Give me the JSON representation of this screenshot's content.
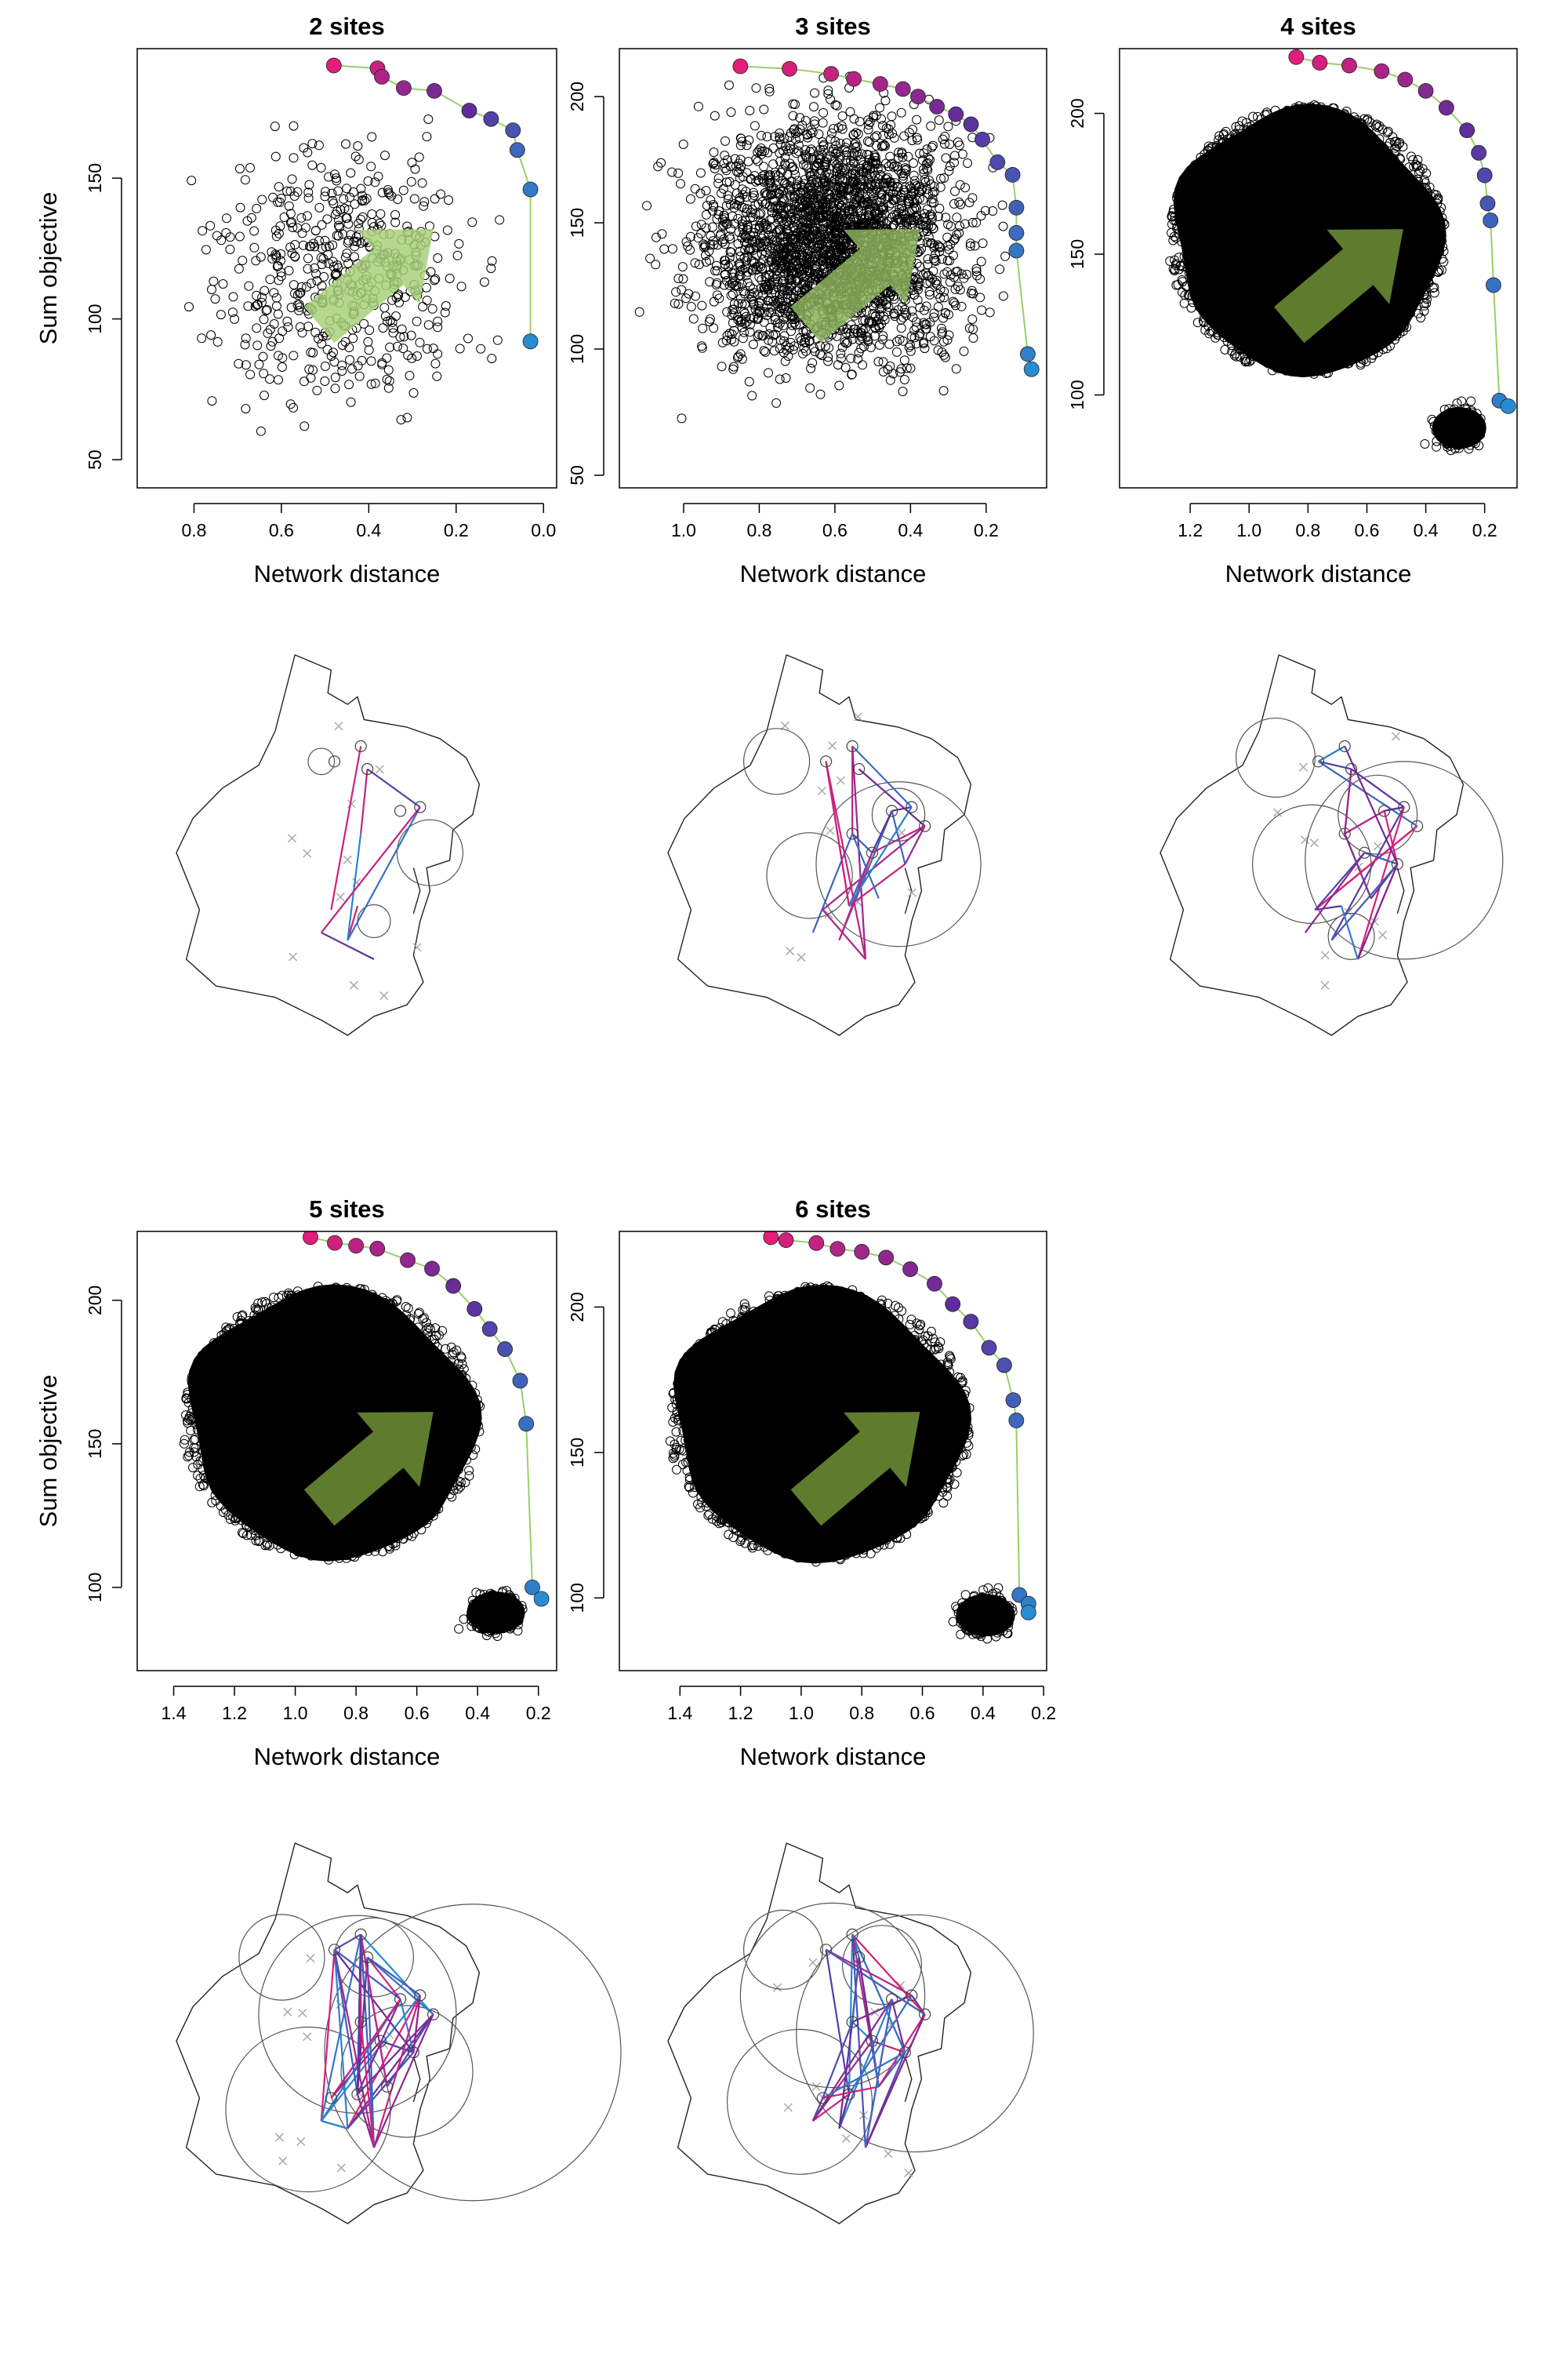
{
  "figure": {
    "row1_ylabel": "Sum objective",
    "row2_ylabel": "Sum objective"
  },
  "chart_data": [
    {
      "type": "scatter",
      "title": "2 sites",
      "xlabel": "Network distance",
      "ylabel": "Sum objective",
      "xlim": [
        0.93,
        -0.03
      ],
      "ylim": [
        40,
        196
      ],
      "xticks": [
        "0.8",
        "0.6",
        "0.4",
        "0.2",
        "0.0"
      ],
      "xtick_values": [
        0.8,
        0.6,
        0.4,
        0.2,
        0.0
      ],
      "yticks": [
        "50",
        "100",
        "150"
      ],
      "ytick_values": [
        50,
        100,
        150
      ],
      "cloud": {
        "x_range": [
          0.05,
          0.88
        ],
        "y_range": [
          40,
          190
        ],
        "density": "sparse"
      },
      "pareto_front": [
        [
          0.48,
          190
        ],
        [
          0.38,
          189
        ],
        [
          0.37,
          186
        ],
        [
          0.32,
          182
        ],
        [
          0.25,
          181
        ],
        [
          0.17,
          174
        ],
        [
          0.12,
          171
        ],
        [
          0.07,
          167
        ],
        [
          0.06,
          160
        ],
        [
          0.03,
          146
        ],
        [
          0.03,
          92
        ]
      ],
      "arrow": {
        "color": "#a9d07a",
        "dark": false
      }
    },
    {
      "type": "scatter",
      "title": "3 sites",
      "xlabel": "Network distance",
      "ylabel": "",
      "xlim": [
        1.17,
        0.04
      ],
      "ylim": [
        45,
        219
      ],
      "xticks": [
        "1.0",
        "0.8",
        "0.6",
        "0.4",
        "0.2"
      ],
      "xtick_values": [
        1.0,
        0.8,
        0.6,
        0.4,
        0.2
      ],
      "yticks": [
        "50",
        "100",
        "150",
        "200"
      ],
      "ytick_values": [
        50,
        100,
        150,
        200
      ],
      "cloud": {
        "x_range": [
          0.1,
          1.12
        ],
        "y_range": [
          50,
          213
        ],
        "density": "medium"
      },
      "pareto_front": [
        [
          0.85,
          212
        ],
        [
          0.72,
          211
        ],
        [
          0.61,
          209
        ],
        [
          0.55,
          207
        ],
        [
          0.48,
          205
        ],
        [
          0.42,
          203
        ],
        [
          0.38,
          200
        ],
        [
          0.33,
          196
        ],
        [
          0.28,
          193
        ],
        [
          0.24,
          189
        ],
        [
          0.21,
          183
        ],
        [
          0.17,
          174
        ],
        [
          0.13,
          169
        ],
        [
          0.12,
          156
        ],
        [
          0.12,
          146
        ],
        [
          0.12,
          139
        ],
        [
          0.09,
          98
        ],
        [
          0.08,
          92
        ]
      ],
      "arrow": {
        "color": "#8bb15a",
        "dark": false
      }
    },
    {
      "type": "scatter",
      "title": "4 sites",
      "xlabel": "Network distance",
      "ylabel": "",
      "xlim": [
        1.44,
        0.09
      ],
      "ylim": [
        67,
        223
      ],
      "xticks": [
        "1.2",
        "1.0",
        "0.8",
        "0.6",
        "0.4",
        "0.2"
      ],
      "xtick_values": [
        1.2,
        1.0,
        0.8,
        0.6,
        0.4,
        0.2
      ],
      "yticks": [
        "100",
        "150",
        "200"
      ],
      "ytick_values": [
        100,
        150,
        200
      ],
      "cloud": {
        "x_range": [
          0.2,
          1.35
        ],
        "y_range": [
          72,
          220
        ],
        "density": "dense"
      },
      "pareto_front": [
        [
          0.84,
          220
        ],
        [
          0.76,
          218
        ],
        [
          0.66,
          217
        ],
        [
          0.55,
          215
        ],
        [
          0.47,
          212
        ],
        [
          0.4,
          208
        ],
        [
          0.33,
          202
        ],
        [
          0.26,
          194
        ],
        [
          0.22,
          186
        ],
        [
          0.2,
          178
        ],
        [
          0.19,
          168
        ],
        [
          0.18,
          162
        ],
        [
          0.17,
          139
        ],
        [
          0.15,
          98
        ],
        [
          0.12,
          96
        ]
      ],
      "arrow": {
        "color": "#5f7c2e",
        "dark": true
      }
    },
    {
      "type": "scatter",
      "title": "5 sites",
      "xlabel": "Network distance",
      "ylabel": "Sum objective",
      "xlim": [
        1.52,
        0.14
      ],
      "ylim": [
        71,
        224
      ],
      "xticks": [
        "1.4",
        "1.2",
        "1.0",
        "0.8",
        "0.6",
        "0.4",
        "0.2"
      ],
      "xtick_values": [
        1.4,
        1.2,
        1.0,
        0.8,
        0.6,
        0.4,
        0.2
      ],
      "yticks": [
        "100",
        "150",
        "200"
      ],
      "ytick_values": [
        100,
        150,
        200
      ],
      "cloud": {
        "x_range": [
          0.25,
          1.45
        ],
        "y_range": [
          75,
          222
        ],
        "density": "dense"
      },
      "pareto_front": [
        [
          0.95,
          222
        ],
        [
          0.87,
          220
        ],
        [
          0.8,
          219
        ],
        [
          0.73,
          218
        ],
        [
          0.63,
          214
        ],
        [
          0.55,
          211
        ],
        [
          0.48,
          205
        ],
        [
          0.41,
          197
        ],
        [
          0.36,
          190
        ],
        [
          0.31,
          183
        ],
        [
          0.26,
          172
        ],
        [
          0.24,
          157
        ],
        [
          0.22,
          100
        ],
        [
          0.19,
          96
        ]
      ],
      "arrow": {
        "color": "#5f7c2e",
        "dark": true
      }
    },
    {
      "type": "scatter",
      "title": "6 sites",
      "xlabel": "Network distance",
      "ylabel": "",
      "xlim": [
        1.6,
        0.19
      ],
      "ylim": [
        75,
        226
      ],
      "xticks": [
        "1.4",
        "1.2",
        "1.0",
        "0.8",
        "0.6",
        "0.4",
        "0.2"
      ],
      "xtick_values": [
        1.4,
        1.2,
        1.0,
        0.8,
        0.6,
        0.4,
        0.2
      ],
      "yticks": [
        "100",
        "150",
        "200"
      ],
      "ytick_values": [
        100,
        150,
        200
      ],
      "cloud": {
        "x_range": [
          0.3,
          1.52
        ],
        "y_range": [
          78,
          224
        ],
        "density": "dense"
      },
      "pareto_front": [
        [
          1.1,
          224
        ],
        [
          1.05,
          223
        ],
        [
          0.95,
          222
        ],
        [
          0.88,
          220
        ],
        [
          0.8,
          219
        ],
        [
          0.72,
          217
        ],
        [
          0.64,
          213
        ],
        [
          0.56,
          208
        ],
        [
          0.5,
          201
        ],
        [
          0.44,
          195
        ],
        [
          0.38,
          186
        ],
        [
          0.33,
          180
        ],
        [
          0.3,
          168
        ],
        [
          0.29,
          161
        ],
        [
          0.28,
          101
        ],
        [
          0.25,
          98
        ],
        [
          0.25,
          95
        ]
      ],
      "arrow": {
        "color": "#5f7c2e",
        "dark": true
      }
    }
  ]
}
